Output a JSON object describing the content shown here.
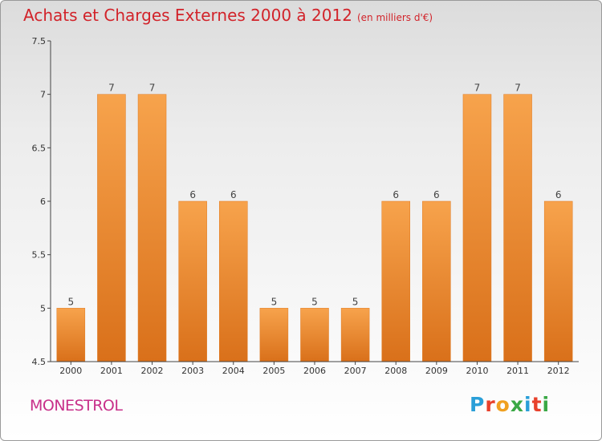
{
  "title": "Achats et Charges Externes 2000 à 2012",
  "subtitle": "(en milliers d'€)",
  "commune": "MONESTROL",
  "logo": {
    "letters": [
      "P",
      "r",
      "o",
      "x",
      "i",
      "t",
      "i"
    ],
    "colors": [
      "#2a9fd8",
      "#e8412c",
      "#f0a020",
      "#3aa845",
      "#2a9fd8",
      "#e8412c",
      "#3aa845"
    ]
  },
  "colors": {
    "bar": "#f08a2a",
    "bar_light": "#f7a34c",
    "bar_dark": "#d9701a",
    "title": "#d2232a",
    "commune": "#c8308a"
  },
  "chart_data": {
    "type": "bar",
    "categories": [
      "2000",
      "2001",
      "2002",
      "2003",
      "2004",
      "2005",
      "2006",
      "2007",
      "2008",
      "2009",
      "2010",
      "2011",
      "2012"
    ],
    "values": [
      5,
      7,
      7,
      6,
      6,
      5,
      5,
      5,
      6,
      6,
      7,
      7,
      6
    ],
    "ylim": [
      4.5,
      7.5
    ],
    "yticks": [
      "4.5",
      "5",
      "5.5",
      "6",
      "6.5",
      "7",
      "7.5"
    ],
    "grid": false
  }
}
